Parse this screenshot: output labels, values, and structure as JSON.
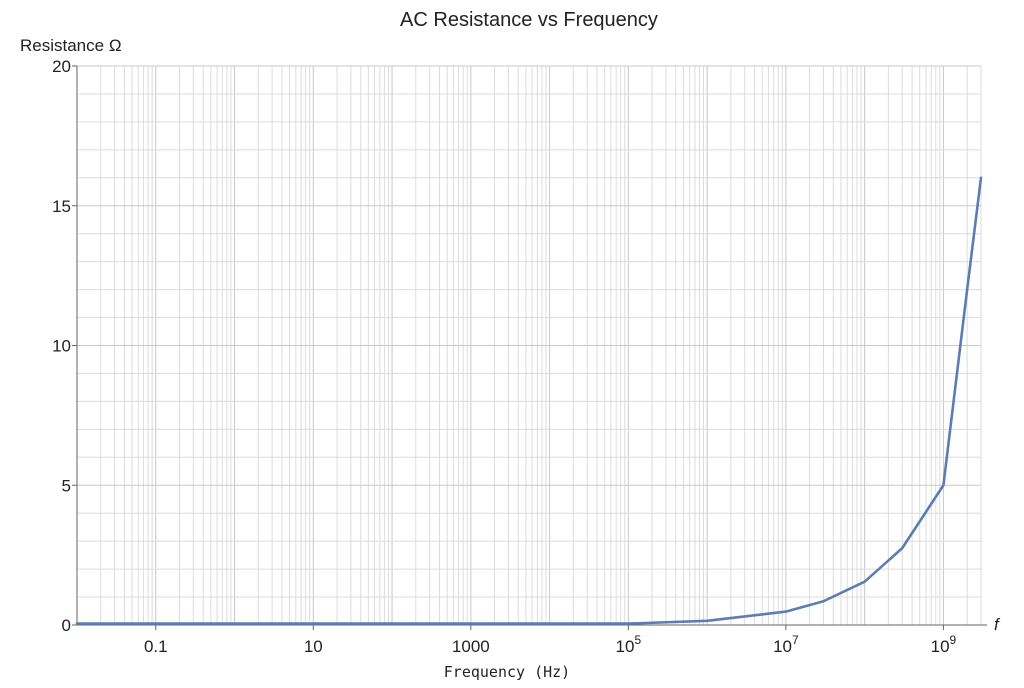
{
  "chart_data": {
    "type": "line",
    "title": "AC Resistance vs Frequency",
    "ylabel": "Resistance Ω",
    "xlabel": "Frequency (Hz)",
    "x_axis_symbol": "f",
    "x_scale": "log",
    "xlim": [
      0.01,
      3000000000.0
    ],
    "ylim": [
      0,
      20
    ],
    "x_ticks": [
      {
        "value": 0.1,
        "label": "0.1"
      },
      {
        "value": 10,
        "label": "10"
      },
      {
        "value": 1000,
        "label": "1000"
      },
      {
        "value": 100000,
        "label": "10",
        "exp": "5"
      },
      {
        "value": 10000000,
        "label": "10",
        "exp": "7"
      },
      {
        "value": 1000000000,
        "label": "10",
        "exp": "9"
      }
    ],
    "y_ticks": [
      {
        "value": 0,
        "label": "0"
      },
      {
        "value": 5,
        "label": "5"
      },
      {
        "value": 10,
        "label": "10"
      },
      {
        "value": 15,
        "label": "15"
      },
      {
        "value": 20,
        "label": "20"
      }
    ],
    "grid": true,
    "series": [
      {
        "color": "#5b7db3",
        "points": [
          {
            "x": 0.01,
            "y": 0.05
          },
          {
            "x": 100,
            "y": 0.05
          },
          {
            "x": 100000,
            "y": 0.05
          },
          {
            "x": 1000000,
            "y": 0.15
          },
          {
            "x": 10000000,
            "y": 0.48
          },
          {
            "x": 30000000,
            "y": 0.85
          },
          {
            "x": 100000000,
            "y": 1.55
          },
          {
            "x": 300000000,
            "y": 2.75
          },
          {
            "x": 1000000000,
            "y": 5.0
          },
          {
            "x": 2000000000,
            "y": 12.0
          },
          {
            "x": 3000000000,
            "y": 16.0
          }
        ]
      }
    ]
  }
}
